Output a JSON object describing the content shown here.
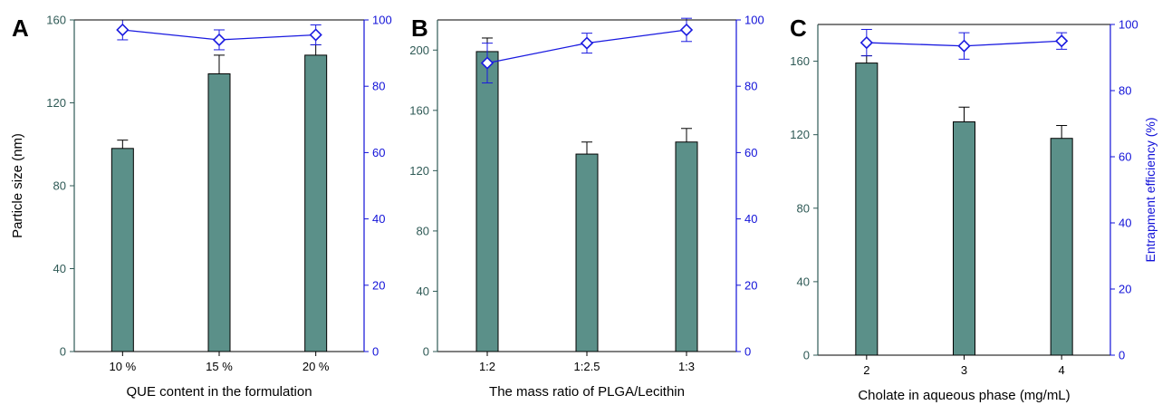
{
  "colors": {
    "bar_fill": "#5b9089",
    "bar_stroke": "#000000",
    "left_axis": "#2f5a56",
    "right_axis": "#1212d8",
    "line": "#1a1ae0"
  },
  "shared": {
    "ylabel_left": "Particle size (nm)",
    "ylabel_right": "Entrapment efficiency (%)"
  },
  "chart_data": [
    {
      "type": "bar+line",
      "panel": "A",
      "xlabel": "QUE content in the formulation",
      "categories": [
        "10 %",
        "15 %",
        "20 %"
      ],
      "bar_series": {
        "name": "Particle size",
        "values": [
          98,
          134,
          143
        ],
        "errors": [
          4,
          9,
          5
        ]
      },
      "line_series": {
        "name": "Entrapment efficiency",
        "values": [
          97,
          94,
          95.5
        ],
        "errors": [
          3,
          3,
          3
        ]
      },
      "ylim_left": [
        0,
        160
      ],
      "yticks_left": [
        0,
        40,
        80,
        120,
        160
      ],
      "ylim_right": [
        0,
        100
      ],
      "yticks_right": [
        0,
        20,
        40,
        60,
        80,
        100
      ],
      "show_left_title": true,
      "show_right_title": false,
      "grid": false
    },
    {
      "type": "bar+line",
      "panel": "B",
      "xlabel": "The mass ratio of PLGA/Lecithin",
      "categories": [
        "1:2",
        "1:2.5",
        "1:3"
      ],
      "bar_series": {
        "name": "Particle size",
        "values": [
          199,
          131,
          139
        ],
        "errors": [
          9,
          8,
          9
        ]
      },
      "line_series": {
        "name": "Entrapment efficiency",
        "values": [
          87,
          93,
          97
        ],
        "errors": [
          6,
          3,
          3.5
        ]
      },
      "ylim_left": [
        0,
        220
      ],
      "yticks_left": [
        0,
        40,
        80,
        120,
        160,
        200
      ],
      "ylim_right": [
        0,
        100
      ],
      "yticks_right": [
        0,
        20,
        40,
        60,
        80,
        100
      ],
      "show_left_title": false,
      "show_right_title": false,
      "grid": false
    },
    {
      "type": "bar+line",
      "panel": "C",
      "xlabel": "Cholate in aqueous phase (mg/mL)",
      "categories": [
        "2",
        "3",
        "4"
      ],
      "bar_series": {
        "name": "Particle size",
        "values": [
          159,
          127,
          118
        ],
        "errors": [
          4,
          8,
          7
        ]
      },
      "line_series": {
        "name": "Entrapment efficiency",
        "values": [
          94.5,
          93.5,
          95
        ],
        "errors": [
          4,
          4,
          2.5
        ]
      },
      "ylim_left": [
        0,
        180
      ],
      "yticks_left": [
        0,
        40,
        80,
        120,
        160
      ],
      "ylim_right": [
        0,
        100
      ],
      "yticks_right": [
        0,
        20,
        40,
        60,
        80,
        100
      ],
      "show_left_title": false,
      "show_right_title": true,
      "grid": false
    }
  ]
}
